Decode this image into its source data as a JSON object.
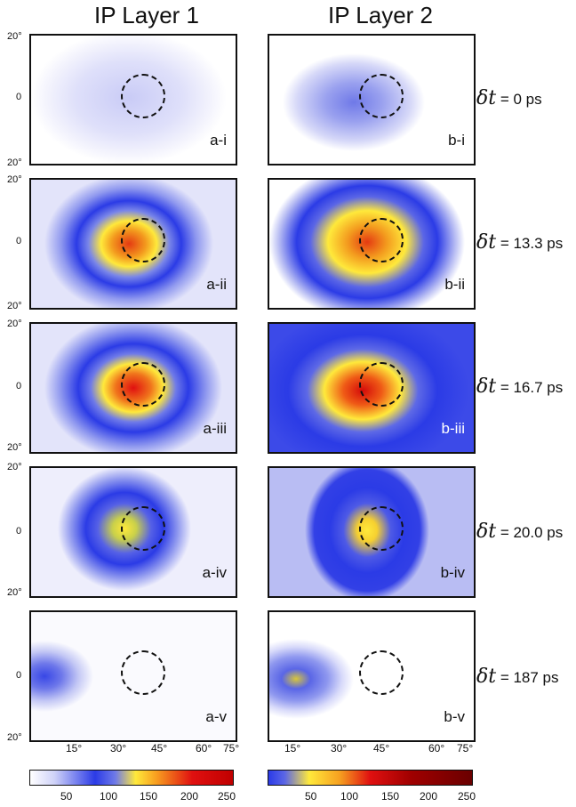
{
  "columns": [
    "IP Layer 1",
    "IP Layer 2"
  ],
  "y_ticks": [
    "20°",
    "0",
    "20°"
  ],
  "x_ticks": [
    "15°",
    "30°",
    "45°",
    "60°",
    "75°"
  ],
  "rows": [
    {
      "dt_prefix": "δt",
      "dt_value": " = 0 ps",
      "a": "a-i",
      "b": "b-i"
    },
    {
      "dt_prefix": "δt",
      "dt_value": " = 13.3 ps",
      "a": "a-ii",
      "b": "b-ii"
    },
    {
      "dt_prefix": "δt",
      "dt_value": " = 16.7 ps",
      "a": "a-iii",
      "b": "b-iii"
    },
    {
      "dt_prefix": "δt",
      "dt_value": " = 20.0 ps",
      "a": "a-iv",
      "b": "b-iv"
    },
    {
      "dt_prefix": "δt",
      "dt_value": " = 187 ps",
      "a": "a-v",
      "b": "b-v"
    }
  ],
  "colorbar_left": [
    "50",
    "100",
    "150",
    "200",
    "250"
  ],
  "colorbar_right": [
    "50",
    "100",
    "150",
    "200",
    "250"
  ],
  "colors": {
    "blue": "#2b3be6",
    "yellow": "#ffe93b",
    "red": "#e01010",
    "dark_red": "#6a0000"
  }
}
